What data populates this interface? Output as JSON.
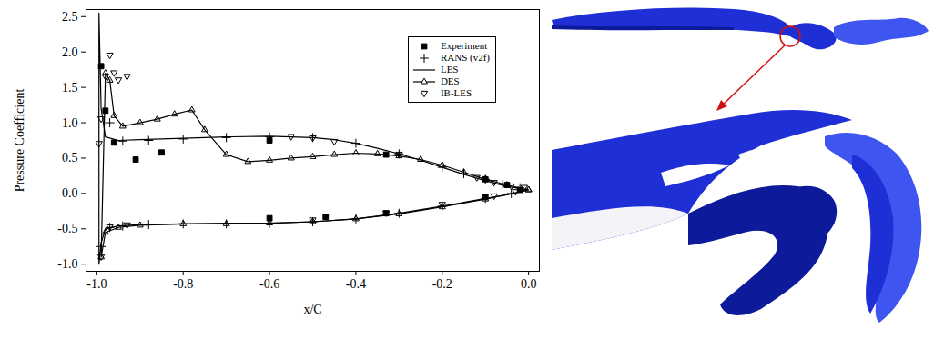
{
  "chart_data": {
    "type": "line",
    "x_label": "x/C",
    "y_label": "Pressure Coefficient",
    "xlim": [
      -1.025,
      0.025
    ],
    "ylim": [
      -1.1,
      2.6
    ],
    "xticks": [
      {
        "value": -1.0,
        "label": "-1.0"
      },
      -0.8,
      -0.6,
      -0.4,
      -0.2,
      {
        "value": 0,
        "label": "0.0"
      }
    ],
    "yticks": [
      {
        "value": -1.0,
        "label": "-1.0"
      },
      -0.5,
      {
        "value": 0,
        "label": "0.0"
      },
      0.5,
      {
        "value": 1.0,
        "label": "1.0"
      },
      1.5,
      {
        "value": 2.0,
        "label": "2.0"
      },
      2.5
    ],
    "grid": false,
    "legend": "upper right",
    "series": [
      {
        "name": "Experiment",
        "type": "scatter",
        "marker": "square",
        "color": "#000000",
        "x": [
          -0.99,
          -0.98,
          -0.96,
          -0.91,
          -0.85,
          -0.6,
          -0.33,
          -0.1,
          -0.05,
          -0.02,
          -0.6,
          -0.47,
          -0.33,
          -0.1
        ],
        "values": [
          1.8,
          1.17,
          0.72,
          0.48,
          0.58,
          0.75,
          0.55,
          0.2,
          0.12,
          0.05,
          -0.35,
          -0.33,
          -0.28,
          -0.05
        ]
      },
      {
        "name": "RANS (v2f)",
        "type": "scatter",
        "marker": "plus",
        "color": "#000000",
        "x": [
          -0.02,
          -0.06,
          -0.1,
          -0.15,
          -0.2,
          -0.3,
          -0.4,
          -0.5,
          -0.6,
          -0.7,
          -0.8,
          -0.88,
          -0.94,
          -0.97,
          -0.99,
          -0.97,
          -0.94,
          -0.88,
          -0.8,
          -0.7,
          -0.6,
          -0.5,
          -0.4,
          -0.3,
          -0.2,
          -0.1,
          -0.04
        ],
        "values": [
          0.08,
          0.13,
          0.2,
          0.28,
          0.37,
          0.56,
          0.71,
          0.79,
          0.8,
          0.79,
          0.77,
          0.75,
          0.74,
          1.0,
          -0.75,
          -0.48,
          -0.46,
          -0.44,
          -0.43,
          -0.43,
          -0.42,
          -0.4,
          -0.36,
          -0.28,
          -0.18,
          -0.07,
          0.0
        ]
      },
      {
        "name": "LES",
        "type": "line",
        "marker": "none",
        "line_style": "solid",
        "color": "#000000",
        "x": [
          0.0,
          -0.05,
          -0.1,
          -0.15,
          -0.2,
          -0.25,
          -0.3,
          -0.35,
          -0.4,
          -0.45,
          -0.5,
          -0.6,
          -0.7,
          -0.8,
          -0.9,
          -0.95,
          -0.98,
          -0.99,
          -0.995,
          -0.995,
          -0.99,
          -0.98,
          -0.95,
          -0.9,
          -0.8,
          -0.7,
          -0.6,
          -0.5,
          -0.4,
          -0.3,
          -0.2,
          -0.1,
          -0.05,
          0.0
        ],
        "values": [
          0.05,
          0.1,
          0.18,
          0.27,
          0.37,
          0.47,
          0.56,
          0.64,
          0.71,
          0.76,
          0.79,
          0.81,
          0.8,
          0.78,
          0.76,
          0.75,
          0.8,
          1.2,
          2.55,
          -1.0,
          -0.7,
          -0.5,
          -0.46,
          -0.44,
          -0.43,
          -0.42,
          -0.42,
          -0.4,
          -0.36,
          -0.28,
          -0.18,
          -0.07,
          -0.02,
          0.05
        ]
      },
      {
        "name": "DES",
        "type": "line",
        "marker": "triangle",
        "line_style": "solid",
        "color": "#000000",
        "x": [
          0,
          -0.05,
          -0.1,
          -0.15,
          -0.2,
          -0.25,
          -0.3,
          -0.35,
          -0.4,
          -0.45,
          -0.5,
          -0.55,
          -0.6,
          -0.65,
          -0.7,
          -0.75,
          -0.78,
          -0.82,
          -0.86,
          -0.9,
          -0.94,
          -0.96,
          -0.97,
          -0.98,
          -0.99,
          -0.98,
          -0.95,
          -0.9,
          -0.8,
          -0.7,
          -0.6,
          -0.5,
          -0.4,
          -0.3,
          -0.2,
          -0.1,
          0
        ],
        "values": [
          0.05,
          0.12,
          0.2,
          0.3,
          0.4,
          0.48,
          0.53,
          0.56,
          0.57,
          0.55,
          0.52,
          0.5,
          0.47,
          0.45,
          0.55,
          0.9,
          1.18,
          1.12,
          1.05,
          1.0,
          0.95,
          1.1,
          1.6,
          1.7,
          -0.9,
          -0.55,
          -0.48,
          -0.45,
          -0.43,
          -0.43,
          -0.42,
          -0.4,
          -0.36,
          -0.29,
          -0.19,
          -0.08,
          0.05
        ]
      },
      {
        "name": "IB-LES",
        "type": "scatter",
        "marker": "triangle-down",
        "color": "#000000",
        "x": [
          -0.01,
          -0.04,
          -0.08,
          -0.12,
          -0.3,
          -0.45,
          -0.5,
          -0.55,
          -0.93,
          -0.95,
          -0.96,
          -0.97,
          -0.98,
          -0.99,
          -0.995,
          -0.99,
          -0.97,
          -0.93,
          -0.5,
          -0.33,
          -0.2,
          -0.08,
          -0.03
        ],
        "values": [
          0.08,
          0.1,
          0.15,
          0.22,
          0.55,
          0.73,
          0.78,
          0.8,
          1.65,
          1.6,
          1.7,
          1.95,
          1.65,
          1.05,
          0.7,
          -0.9,
          -0.48,
          -0.45,
          -0.38,
          -0.28,
          -0.16,
          -0.04,
          0.02
        ]
      }
    ]
  }
}
